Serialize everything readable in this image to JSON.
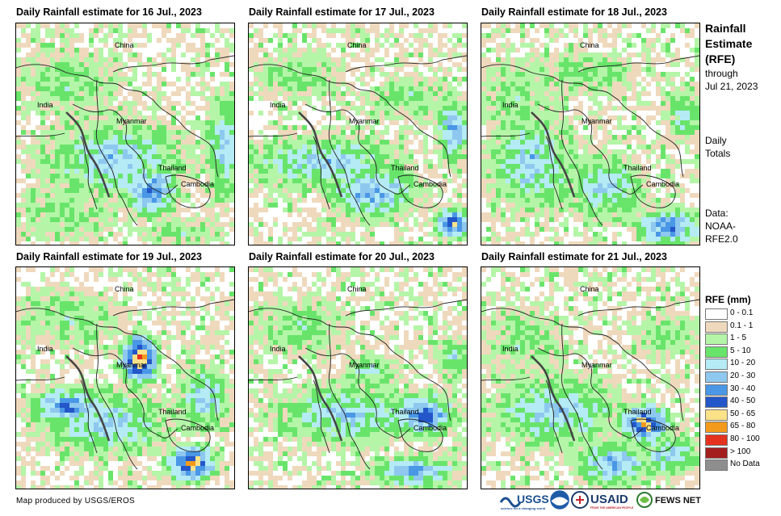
{
  "panels": [
    {
      "title": "Daily Rainfall estimate for 16 Jul., 2023",
      "map": "rainfall-map-16-jul"
    },
    {
      "title": "Daily Rainfall estimate for 17 Jul., 2023",
      "map": "rainfall-map-17-jul"
    },
    {
      "title": "Daily Rainfall estimate for 18 Jul., 2023",
      "map": "rainfall-map-18-jul"
    },
    {
      "title": "Daily Rainfall estimate for 19 Jul., 2023",
      "map": "rainfall-map-19-jul"
    },
    {
      "title": "Daily Rainfall estimate for 20 Jul., 2023",
      "map": "rainfall-map-20-jul"
    },
    {
      "title": "Daily Rainfall estimate for 21 Jul., 2023",
      "map": "rainfall-map-21-jul"
    }
  ],
  "places": {
    "china": "China",
    "india": "India",
    "myanmar": "Myanmar",
    "thailand": "Thailand",
    "cambodia": "Cambodia"
  },
  "side": {
    "title_line1": "Rainfall",
    "title_line2": "Estimate",
    "title_line3": "(RFE)",
    "through": "through",
    "date": "Jul 21, 2023",
    "daily": "Daily",
    "totals": "Totals",
    "data_label": "Data:",
    "data_source_1": "NOAA-",
    "data_source_2": "RFE2.0"
  },
  "legend": {
    "title": "RFE (mm)",
    "items": [
      {
        "label": "0 - 0.1",
        "color": "#ffffff"
      },
      {
        "label": "0.1 - 1",
        "color": "#efd9bd"
      },
      {
        "label": "1 - 5",
        "color": "#b4f5a8"
      },
      {
        "label": "5 - 10",
        "color": "#69e46b"
      },
      {
        "label": "10 - 20",
        "color": "#b4ebf5"
      },
      {
        "label": "20 - 30",
        "color": "#8ec8ef"
      },
      {
        "label": "30 - 40",
        "color": "#4a97e6"
      },
      {
        "label": "40 - 50",
        "color": "#2356c9"
      },
      {
        "label": "50 - 65",
        "color": "#fbe289"
      },
      {
        "label": "65 - 80",
        "color": "#f39a1d"
      },
      {
        "label": "80 - 100",
        "color": "#e4321e"
      },
      {
        "label": "> 100",
        "color": "#a51e1e"
      },
      {
        "label": "No Data",
        "color": "#8e8e8e"
      }
    ]
  },
  "footer": {
    "credit": "Map produced by USGS/EROS",
    "logo_usgs": "USGS",
    "logo_usaid": "USAID",
    "logo_fews": "FEWS NET"
  }
}
